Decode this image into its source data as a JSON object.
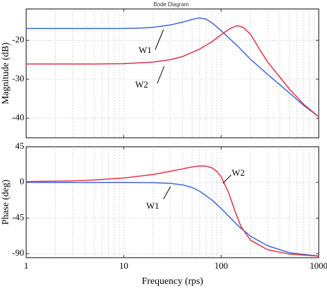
{
  "chart_data": [
    {
      "type": "line",
      "title": "Bode Diagram",
      "ylabel": "Magnitude (dB)",
      "xlabel": "",
      "xscale": "log",
      "xlim": [
        1,
        1000
      ],
      "ylim": [
        -45,
        -12
      ],
      "grid": true,
      "x_ticks": [
        1,
        10,
        100,
        1000
      ],
      "y_ticks": [
        -40,
        -30,
        -20
      ],
      "y_tick_labels": [
        "-40",
        "-30",
        "-20"
      ],
      "series": [
        {
          "name": "W1",
          "color": "#3c64dc",
          "x": [
            1,
            5,
            10,
            15,
            20,
            30,
            40,
            50,
            60,
            70,
            80,
            100,
            150,
            200,
            300,
            500,
            700,
            1000
          ],
          "y": [
            -17,
            -17,
            -17,
            -16.9,
            -16.7,
            -16.1,
            -15.4,
            -14.7,
            -14.3,
            -14.6,
            -15.5,
            -17.6,
            -21.7,
            -24.9,
            -28.8,
            -33.5,
            -36.7,
            -39.6
          ]
        },
        {
          "name": "W2",
          "color": "#e03040",
          "x": [
            1,
            5,
            10,
            20,
            30,
            40,
            60,
            80,
            100,
            120,
            140,
            150,
            170,
            200,
            250,
            300,
            500,
            700,
            1000
          ],
          "y": [
            -26.1,
            -26.1,
            -26,
            -25.6,
            -25,
            -24.2,
            -22.3,
            -20.4,
            -18.6,
            -17.2,
            -16.4,
            -16.3,
            -16.8,
            -18.5,
            -22.5,
            -25.6,
            -32.5,
            -36.4,
            -39.6
          ]
        }
      ],
      "annotations": [
        {
          "text": "W1",
          "series": "W1"
        },
        {
          "text": "W2",
          "series": "W2"
        }
      ]
    },
    {
      "type": "line",
      "title": "",
      "ylabel": "Phase (deg)",
      "xlabel": "Frequency (rps)",
      "xscale": "log",
      "xlim": [
        1,
        1000
      ],
      "ylim": [
        -95,
        45
      ],
      "grid": true,
      "x_ticks": [
        1,
        10,
        100,
        1000
      ],
      "x_tick_labels": [
        "1",
        "10",
        "100",
        "1000"
      ],
      "y_ticks": [
        45,
        0,
        -45,
        -90
      ],
      "y_tick_labels": [
        "45",
        "0",
        "-45",
        "-90"
      ],
      "series": [
        {
          "name": "W1",
          "color": "#3c64dc",
          "x": [
            1,
            5,
            10,
            20,
            30,
            40,
            50,
            60,
            80,
            100,
            150,
            200,
            300,
            500,
            1000
          ],
          "y": [
            0,
            0,
            0,
            -0.3,
            -1.2,
            -3,
            -6.2,
            -11.1,
            -22,
            -33,
            -55,
            -68,
            -80,
            -88.7,
            -93
          ]
        },
        {
          "name": "W2",
          "color": "#e03040",
          "x": [
            1,
            3,
            5,
            10,
            20,
            30,
            40,
            50,
            60,
            70,
            80,
            90,
            100,
            120,
            140,
            160,
            200,
            300,
            500,
            1000
          ],
          "y": [
            1,
            2,
            3,
            5.5,
            10,
            14,
            17,
            19.5,
            20.8,
            20.6,
            18.5,
            14,
            7,
            -14,
            -38,
            -56,
            -73,
            -85,
            -90.5,
            -93
          ]
        }
      ],
      "annotations": [
        {
          "text": "W1",
          "series": "W1"
        },
        {
          "text": "W2",
          "series": "W2"
        }
      ]
    }
  ]
}
